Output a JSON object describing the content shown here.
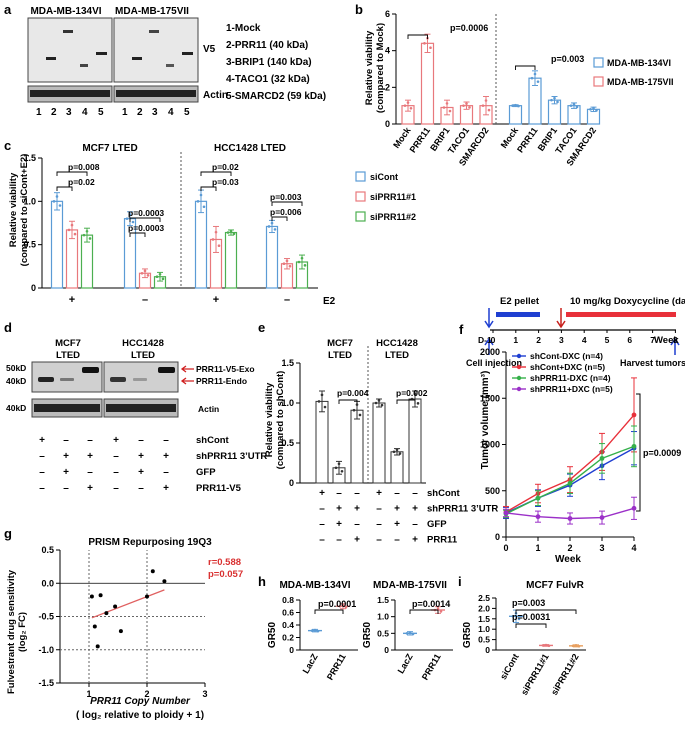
{
  "panels": {
    "a": {
      "letter": "a",
      "cells": [
        "MDA-MB-134VI",
        "MDA-MB-175VII"
      ],
      "lane_numbers": [
        "1",
        "2",
        "3",
        "4",
        "5"
      ],
      "v5_label": "V5",
      "actin_label": "Actin",
      "legend": [
        "1-Mock",
        "2-PRR11 (40 kDa)",
        "3-BRIP1 (140 kDa)",
        "4-TACO1 (32 kDa)",
        "5-SMARCD2 (59 kDa)"
      ]
    },
    "b": {
      "letter": "b",
      "ylabel": "Relative viability",
      "ylabel2": "(compared to Mock)",
      "p_values": [
        "p=0.0006",
        "p=0.003"
      ],
      "legend": [
        {
          "name": "MDA-MB-134VI",
          "color": "#5b9bd5"
        },
        {
          "name": "MDA-MB-175VII",
          "color": "#e8787c"
        }
      ]
    },
    "c": {
      "letter": "c",
      "titles": [
        "MCF7 LTED",
        "HCC1428 LTED"
      ],
      "ylabel": "Relative viability",
      "ylabel2": "(compared to siCont+E2)",
      "p_values_left": [
        "p=0.008",
        "p=0.02",
        "p=0.0003",
        "p=0.0003"
      ],
      "p_values_right": [
        "p=0.02",
        "p=0.03",
        "p=0.003",
        "p=0.006"
      ],
      "e2_signs": [
        "+",
        "–",
        "+",
        "–"
      ],
      "e2_label": "E2",
      "legend": [
        {
          "name": "siCont",
          "color": "#5b9bd5"
        },
        {
          "name": "siPRR11#1",
          "color": "#e8787c"
        },
        {
          "name": "siPRR11#2",
          "color": "#4caf50"
        }
      ]
    },
    "d": {
      "letter": "d",
      "titles": [
        "MCF7",
        "LTED",
        "HCC1428",
        "LTED"
      ],
      "kda": [
        "50kD",
        "40kD",
        "40kD"
      ],
      "band_labels": [
        "PRR11-V5-Exo",
        "PRR11-Endo",
        "Actin"
      ],
      "rows": [
        {
          "label": "shCont",
          "signs": [
            "+",
            "–",
            "–",
            "+",
            "–",
            "–"
          ]
        },
        {
          "label": "shPRR11 3’UTR",
          "signs": [
            "–",
            "+",
            "+",
            "–",
            "+",
            "+"
          ]
        },
        {
          "label": "GFP",
          "signs": [
            "–",
            "+",
            "–",
            "–",
            "+",
            "–"
          ]
        },
        {
          "label": "PRR11-V5",
          "signs": [
            "–",
            "–",
            "+",
            "–",
            "–",
            "+"
          ]
        }
      ]
    },
    "e": {
      "letter": "e",
      "titles": [
        "MCF7",
        "LTED",
        "HCC1428",
        "LTED"
      ],
      "ylabel": "Relative viability",
      "ylabel2": "(compared to shCont)",
      "p_values": [
        "p=0.004",
        "p=0.002"
      ],
      "rows": [
        {
          "label": "shCont",
          "signs": [
            "+",
            "–",
            "–",
            "+",
            "–",
            "–"
          ]
        },
        {
          "label": "shPRR11 3’UTR",
          "signs": [
            "–",
            "+",
            "+",
            "–",
            "+",
            "+"
          ]
        },
        {
          "label": "GFP",
          "signs": [
            "–",
            "+",
            "–",
            "–",
            "+",
            "–"
          ]
        },
        {
          "label": "PRR11",
          "signs": [
            "–",
            "–",
            "+",
            "–",
            "–",
            "+"
          ]
        }
      ]
    },
    "f": {
      "letter": "f",
      "e2_label": "E2 pellet",
      "dox_label": "10 mg/kg Doxycycline (daily)",
      "d1_label": "D-1",
      "week_label": "Week",
      "ticks": [
        "0",
        "1",
        "2",
        "3",
        "4",
        "5",
        "6",
        "7",
        "8"
      ],
      "cell_injection": "Cell injection",
      "harvest": "Harvest tumors",
      "ylabel": "Tumor volume (mm³)",
      "xlabel": "Week",
      "p_value": "p=0.0009",
      "legend": [
        "shCont-DXC (n=4)",
        "shCont+DXC (n=5)",
        "shPRR11-DXC (n=4)",
        "shPRR11+DXC (n=5)"
      ]
    },
    "g": {
      "letter": "g",
      "title": "PRISM Repurposing 19Q3",
      "ylabel": "Fulvestrant drug sensitivity",
      "ylabel2": "(log₂ FC)",
      "xlabel": "PRR11 Copy Number",
      "xlabel2": "( log₂ relative to ploidy + 1)",
      "r": "r=0.588",
      "p": "p=0.057"
    },
    "h": {
      "letter": "h",
      "titles": [
        "MDA-MB-134VI",
        "MDA-MB-175VII"
      ],
      "ylabel": "GR50",
      "p_values": [
        "p=0.0001",
        "p=0.0014"
      ]
    },
    "i": {
      "letter": "i",
      "title": "MCF7 FulvR",
      "ylabel": "GR50",
      "p_values": [
        "p=0.0031",
        "p=0.003"
      ]
    }
  },
  "chart_data": [
    {
      "type": "bar",
      "panel": "b",
      "categories": [
        "Mock",
        "PRR11",
        "BRIP1",
        "TACO1",
        "SMARCD2",
        "Mock",
        "PRR11",
        "BRIP1",
        "TACO1",
        "SMARCD2"
      ],
      "series": [
        {
          "name": "MDA-MB-175VII",
          "values": [
            1.0,
            4.4,
            0.9,
            1.0,
            1.0,
            null,
            null,
            null,
            null,
            null
          ],
          "errors": [
            0.3,
            0.5,
            0.4,
            0.2,
            0.5,
            null,
            null,
            null,
            null,
            null
          ]
        },
        {
          "name": "MDA-MB-134VI",
          "values": [
            null,
            null,
            null,
            null,
            null,
            1.0,
            2.5,
            1.3,
            1.0,
            0.8
          ],
          "errors": [
            null,
            null,
            null,
            null,
            null,
            0.05,
            0.4,
            0.2,
            0.15,
            0.12
          ]
        }
      ],
      "ylim": [
        0,
        6
      ],
      "yticks": [
        "0",
        "2",
        "4",
        "6"
      ]
    },
    {
      "type": "bar",
      "panel": "c",
      "categories": [
        "MCF7 LTED +E2",
        "MCF7 LTED –E2",
        "HCC1428 LTED +E2",
        "HCC1428 LTED –E2"
      ],
      "series": [
        {
          "name": "siCont",
          "values": [
            1.0,
            0.8,
            1.0,
            0.71
          ],
          "errors": [
            0.1,
            0.08,
            0.13,
            0.07
          ]
        },
        {
          "name": "siPRR11#1",
          "values": [
            0.67,
            0.17,
            0.56,
            0.28
          ],
          "errors": [
            0.1,
            0.05,
            0.15,
            0.06
          ]
        },
        {
          "name": "siPRR11#2",
          "values": [
            0.61,
            0.13,
            0.64,
            0.3
          ],
          "errors": [
            0.08,
            0.05,
            0.03,
            0.08
          ]
        }
      ],
      "ylim": [
        0,
        1.5
      ],
      "yticks": [
        "0",
        "0.5",
        "1.0",
        "1.5"
      ]
    },
    {
      "type": "bar",
      "panel": "e",
      "categories": [
        "1",
        "2",
        "3",
        "4",
        "5",
        "6"
      ],
      "values": [
        1.02,
        0.19,
        0.91,
        1.0,
        0.39,
        1.05
      ],
      "errors": [
        0.13,
        0.08,
        0.11,
        0.05,
        0.04,
        0.1
      ],
      "ylim": [
        0,
        1.5
      ],
      "yticks": [
        "0",
        "0.5",
        "1.0",
        "1.5"
      ]
    },
    {
      "type": "line",
      "panel": "f",
      "x": [
        0,
        1,
        2,
        3,
        4
      ],
      "series": [
        {
          "name": "shCont-DXC (n=4)",
          "color": "#1f3fd1",
          "values": [
            260,
            420,
            560,
            770,
            960
          ],
          "errors": [
            60,
            90,
            120,
            150,
            180
          ]
        },
        {
          "name": "shCont+DXC (n=5)",
          "color": "#e8303a",
          "values": [
            270,
            470,
            620,
            920,
            1320
          ],
          "errors": [
            60,
            100,
            140,
            200,
            400
          ]
        },
        {
          "name": "shPRR11-DXC (n=4)",
          "color": "#35b04a",
          "values": [
            250,
            420,
            580,
            850,
            980
          ],
          "errors": [
            40,
            80,
            110,
            160,
            220
          ]
        },
        {
          "name": "shPRR11+DXC (n=5)",
          "color": "#9b30c8",
          "values": [
            260,
            220,
            200,
            210,
            310
          ],
          "errors": [
            40,
            60,
            60,
            70,
            120
          ]
        }
      ],
      "ylim": [
        0,
        2000
      ],
      "yticks": [
        "0",
        "500",
        "1000",
        "1500",
        "2000"
      ]
    },
    {
      "type": "scatter",
      "panel": "g",
      "x": [
        1.05,
        1.1,
        1.15,
        1.2,
        1.3,
        1.45,
        1.55,
        2.0,
        2.1,
        2.3
      ],
      "y": [
        -0.2,
        -0.65,
        -0.95,
        -0.18,
        -0.45,
        -0.35,
        -0.72,
        -0.2,
        0.18,
        0.03
      ],
      "xlim": [
        0.5,
        3
      ],
      "ylim": [
        -1.5,
        0.5
      ],
      "xticks": [
        "1",
        "2",
        "3"
      ],
      "yticks": [
        "-1.5",
        "-1.0",
        "-0.5",
        "0.0",
        "0.5"
      ]
    },
    {
      "type": "scatter",
      "panel": "h",
      "subpanels": [
        {
          "title": "MDA-MB-134VI",
          "categories": [
            "LacZ",
            "PRR11"
          ],
          "values": [
            0.31,
            0.7
          ],
          "errors": [
            0.02,
            0.04
          ],
          "ylim": [
            0,
            0.8
          ],
          "yticks": [
            "0",
            "0.2",
            "0.4",
            "0.6",
            "0.8"
          ],
          "colors": [
            "#5b9bd5",
            "#e8787c"
          ]
        },
        {
          "title": "MDA-MB-175VII",
          "categories": [
            "LacZ",
            "PRR11"
          ],
          "values": [
            0.5,
            1.2
          ],
          "errors": [
            0.05,
            0.1
          ],
          "ylim": [
            0,
            1.5
          ],
          "yticks": [
            "0",
            "0.5",
            "1.0",
            "1.5"
          ],
          "colors": [
            "#5b9bd5",
            "#e8787c"
          ]
        }
      ]
    },
    {
      "type": "scatter",
      "panel": "i",
      "categories": [
        "siCont",
        "siPRR11#1",
        "siPRR11#2"
      ],
      "values": [
        1.62,
        0.22,
        0.2
      ],
      "errors": [
        0.3,
        0.04,
        0.05
      ],
      "ylim": [
        0,
        2.5
      ],
      "yticks": [
        "0",
        "0.5",
        "1.0",
        "1.5",
        "2.0",
        "2.5"
      ],
      "colors": [
        "#5b9bd5",
        "#e8787c",
        "#e8a060"
      ]
    }
  ]
}
